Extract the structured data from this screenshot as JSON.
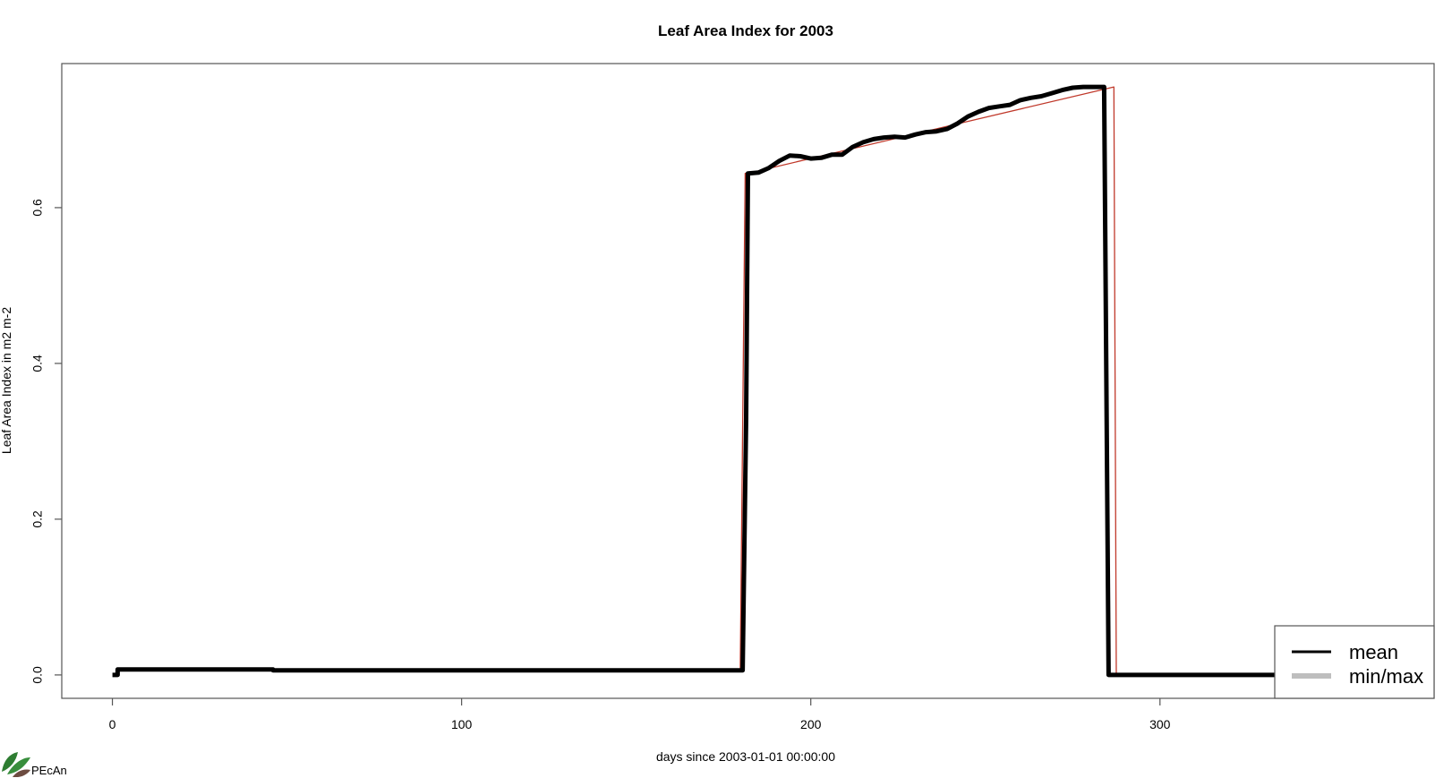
{
  "chart_data": {
    "type": "line",
    "title": "Leaf Area Index for 2003",
    "xlabel": "days since 2003-01-01 00:00:00",
    "ylabel": "Leaf Area Index in m2 m-2",
    "xlim": [
      -14.5,
      378.5
    ],
    "ylim": [
      -0.03,
      0.785
    ],
    "x_ticks": [
      0,
      100,
      200,
      300
    ],
    "x_tick_labels": [
      "0",
      "100",
      "200",
      "300"
    ],
    "y_ticks": [
      0.0,
      0.2,
      0.4,
      0.6
    ],
    "y_tick_labels": [
      "0.0",
      "0.2",
      "0.4",
      "0.6"
    ],
    "grid": false,
    "legend_position": "bottom-right",
    "series": [
      {
        "name": "mean",
        "color": "#000000",
        "x": [
          0,
          1.5,
          1.5,
          46,
          46,
          180.5,
          181.5,
          182,
          185,
          188,
          191,
          194,
          197,
          200,
          203,
          206,
          209,
          212,
          215,
          218,
          221,
          224,
          227,
          230,
          233,
          236,
          239,
          242,
          245,
          248,
          251,
          254,
          257,
          260,
          263,
          266,
          269,
          272,
          275,
          278,
          281,
          284,
          285.3,
          288,
          300,
          330,
          333
        ],
        "y": [
          0,
          0,
          0.007,
          0.007,
          0.006,
          0.006,
          0.33,
          0.644,
          0.645,
          0.651,
          0.66,
          0.667,
          0.666,
          0.663,
          0.664,
          0.668,
          0.668,
          0.678,
          0.684,
          0.688,
          0.69,
          0.691,
          0.69,
          0.694,
          0.697,
          0.698,
          0.701,
          0.708,
          0.717,
          0.723,
          0.728,
          0.73,
          0.732,
          0.738,
          0.741,
          0.743,
          0.747,
          0.751,
          0.754,
          0.755,
          0.755,
          0.755,
          0.0,
          0.0,
          0.0,
          0.0,
          0.0
        ]
      },
      {
        "name": "min/max",
        "color": "#bebebe",
        "x": [
          180.5,
          181.5,
          182
        ],
        "y": [
          0.006,
          0.33,
          0.644
        ]
      },
      {
        "name": "",
        "color": "#c0392b",
        "x": [
          179.8,
          181.2,
          181.9,
          286.8,
          287.5
        ],
        "y": [
          0.006,
          0.644,
          0.644,
          0.755,
          0.0
        ]
      }
    ],
    "legend": [
      {
        "label": "mean",
        "color": "#000000"
      },
      {
        "label": "min/max",
        "color": "#bebebe"
      }
    ],
    "logo_text": "PEcAn"
  }
}
